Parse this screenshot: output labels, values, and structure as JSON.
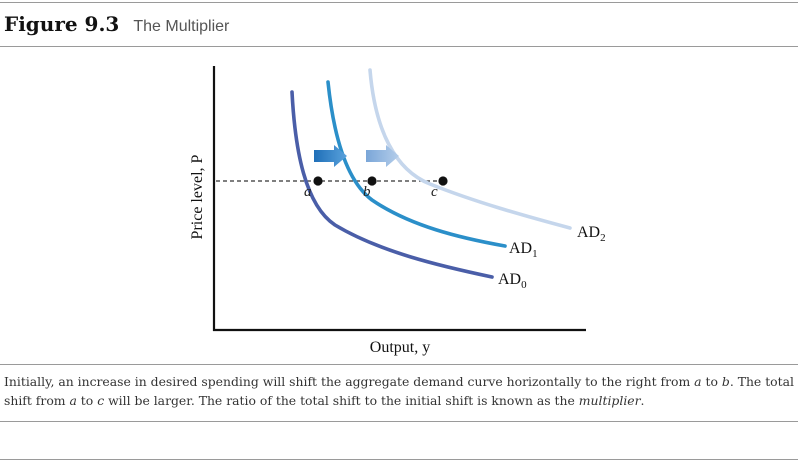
{
  "figure": {
    "label": "Figure 9.3",
    "title": "The Multiplier"
  },
  "caption": {
    "p1": "Initially, an increase in desired spending will shift the aggregate demand curve horizontally to the right from ",
    "a1": "a",
    "p2": " to ",
    "b1": "b",
    "p3": ". The total shift from ",
    "a2": "a",
    "p4": " to ",
    "c1": "c",
    "p5": " will be larger. The ratio of the total shift to the initial shift is known as the ",
    "term": "multiplier",
    "p6": "."
  },
  "chart_data": {
    "type": "line",
    "xlabel": "Output, y",
    "ylabel": "Price level, P",
    "series": [
      {
        "name": "AD0",
        "label_main": "AD",
        "label_sub": "0",
        "color": "#4a5ea8",
        "shift": 0
      },
      {
        "name": "AD1",
        "label_main": "AD",
        "label_sub": "1",
        "color": "#2b8fc9",
        "shift": 1
      },
      {
        "name": "AD2",
        "label_main": "AD",
        "label_sub": "2",
        "color": "#c5d6ec",
        "shift": 2
      }
    ],
    "points": [
      {
        "label": "a",
        "curve": "AD0"
      },
      {
        "label": "b",
        "curve": "AD1"
      },
      {
        "label": "c",
        "curve": "AD2"
      }
    ],
    "arrows": [
      {
        "from": "AD0",
        "to": "AD1",
        "color": "#2e78c0"
      },
      {
        "from": "AD1",
        "to": "AD2",
        "color": "#8fb3de"
      }
    ],
    "reference_line": "dashed horizontal at initial price level"
  }
}
